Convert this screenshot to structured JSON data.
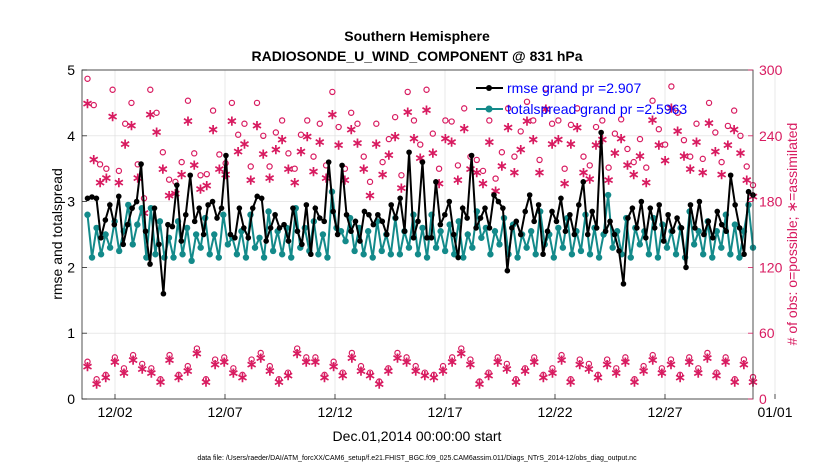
{
  "chart_data": {
    "type": "line",
    "title": "Southern Hemisphere",
    "subtitle": "RADIOSONDE_U_WIND_COMPONENT @ 831 hPa",
    "xlabel": "Dec.01,2014 00:00:00 start",
    "ylabel_left": "rmse and totalspread",
    "ylabel_right": "# of obs: o=possible; ∗=assimilated",
    "footer": "data file: /Users/raeder/DAI/ATM_forcXX/CAM6_setup/f.e21.FHIST_BGC.f09_025.CAM6assim.011/Diags_NTrS_2014-12/obs_diag_output.nc",
    "xlim": [
      0.5,
      31.0
    ],
    "ylim_left": [
      0,
      5
    ],
    "ylim_right": [
      0,
      300
    ],
    "x_ticks": [
      2,
      7,
      12,
      17,
      22,
      27,
      32
    ],
    "x_tick_labels": [
      "12/02",
      "12/07",
      "12/12",
      "12/17",
      "12/22",
      "12/27",
      "01/01"
    ],
    "y_left_ticks": [
      "0",
      "1",
      "2",
      "3",
      "4",
      "5"
    ],
    "y_right_ticks": [
      "0",
      "60",
      "120",
      "180",
      "240",
      "300"
    ],
    "colors": {
      "rmse": "#000000",
      "spread": "#138a8a",
      "obs": "#d81b60",
      "legend_text": "#0000ff",
      "right_axis": "#d81b60"
    },
    "legend": {
      "position": "top-right",
      "entries": [
        "rmse grand pr =2.907",
        "totalspread grand pr =2.5963"
      ]
    },
    "series": [
      {
        "name": "rmse",
        "values": [
          3.05,
          3.07,
          3.05,
          2.45,
          2.72,
          2.95,
          2.65,
          3.08,
          2.35,
          2.65,
          2.9,
          3.0,
          3.57,
          2.55,
          2.05,
          2.9,
          2.35,
          1.6,
          2.65,
          2.62,
          3.25,
          2.4,
          2.8,
          3.4,
          2.7,
          2.9,
          2.5,
          2.95,
          3.0,
          2.75,
          2.9,
          3.7,
          2.5,
          2.45,
          2.9,
          2.6,
          2.45,
          2.9,
          3.08,
          3.05,
          2.4,
          2.6,
          2.8,
          2.6,
          2.65,
          2.4,
          2.9,
          2.55,
          2.35,
          2.95,
          2.2,
          2.9,
          2.75,
          2.7,
          3.6,
          2.85,
          2.5,
          3.55,
          2.8,
          2.55,
          2.7,
          2.4,
          2.85,
          2.8,
          2.65,
          2.8,
          2.7,
          2.5,
          2.95,
          2.75,
          3.05,
          2.55,
          3.75,
          2.45,
          2.7,
          3.6,
          2.45,
          2.45,
          3.3,
          2.65,
          2.8,
          3.0,
          2.5,
          2.15,
          2.9,
          2.75,
          3.7,
          2.6,
          2.75,
          2.9,
          2.6,
          3.1,
          3.0,
          2.9,
          1.95,
          2.6,
          2.7,
          2.5,
          2.85,
          3.1,
          2.7,
          2.95,
          2.2,
          2.55,
          2.85,
          2.7,
          3.05,
          2.55,
          2.8,
          2.5,
          2.95,
          3.3,
          2.5,
          2.85,
          2.6,
          4.05,
          2.55,
          2.7,
          2.5,
          2.25,
          1.75,
          2.75,
          2.9,
          2.6,
          3.0,
          2.45,
          2.9,
          2.6,
          2.95,
          2.4,
          2.8,
          2.55,
          2.75,
          2.6,
          2.0,
          2.95,
          2.6,
          3.0,
          2.5,
          2.7,
          2.45,
          2.85,
          2.65,
          2.55,
          3.4,
          2.95,
          2.6,
          2.2,
          3.15,
          3.1
        ]
      },
      {
        "name": "totalspread",
        "values": [
          2.8,
          2.15,
          2.6,
          2.2,
          2.5,
          2.3,
          2.7,
          2.25,
          2.55,
          2.95,
          2.35,
          2.65,
          2.9,
          2.15,
          2.9,
          2.2,
          2.7,
          2.15,
          2.45,
          2.15,
          2.7,
          2.2,
          2.6,
          2.1,
          2.5,
          2.3,
          2.75,
          2.2,
          2.5,
          2.15,
          2.8,
          2.35,
          2.45,
          2.2,
          2.55,
          2.15,
          2.8,
          2.3,
          2.45,
          2.15,
          2.85,
          2.25,
          2.55,
          2.2,
          2.6,
          2.15,
          2.9,
          2.3,
          2.6,
          2.25,
          2.7,
          2.2,
          2.5,
          2.15,
          3.15,
          2.6,
          2.55,
          2.4,
          2.75,
          2.25,
          2.6,
          2.2,
          2.55,
          2.15,
          2.7,
          2.25,
          2.5,
          2.2,
          2.75,
          2.2,
          2.55,
          2.3,
          2.8,
          2.2,
          2.6,
          2.15,
          2.8,
          2.3,
          2.55,
          2.25,
          2.65,
          2.2,
          2.7,
          2.15,
          2.5,
          2.3,
          2.85,
          2.45,
          2.6,
          2.2,
          2.55,
          2.35,
          2.75,
          2.2,
          2.65,
          2.15,
          2.5,
          2.3,
          2.55,
          2.2,
          2.85,
          2.35,
          2.5,
          2.15,
          2.6,
          2.3,
          2.75,
          2.2,
          2.55,
          2.25,
          2.8,
          2.2,
          2.6,
          2.15,
          2.5,
          3.1,
          2.3,
          2.55,
          2.2,
          2.75,
          2.15,
          2.6,
          2.35,
          2.55,
          2.2,
          2.75,
          2.15,
          2.65,
          2.3,
          2.55,
          2.2,
          2.6,
          2.15,
          2.85,
          2.35,
          2.55,
          2.2,
          2.7,
          2.15,
          2.55,
          2.3,
          2.8,
          2.2,
          2.65,
          2.15,
          2.55,
          2.95,
          2.3
        ]
      },
      {
        "name": "obs_possible_high",
        "values": [
          292,
          268,
          214,
          210,
          282,
          208,
          251,
          270,
          214,
          183,
          282,
          261,
          225,
          200,
          198,
          216,
          272,
          224,
          204,
          205,
          263,
          223,
          215,
          270,
          241,
          251,
          212,
          270,
          240,
          212,
          243,
          254,
          224,
          210,
          241,
          254,
          221,
          251,
          213,
          280,
          248,
          210,
          261,
          251,
          221,
          198,
          251,
          216,
          237,
          257,
          204,
          280,
          254,
          232,
          282,
          242,
          210,
          254,
          253,
          213,
          265,
          221,
          218,
          208,
          254,
          201,
          225,
          265,
          221,
          244,
          271,
          254,
          218,
          283,
          251,
          254,
          210,
          250,
          265,
          221,
          213,
          248,
          254,
          211,
          242,
          255,
          228,
          216,
          237,
          211,
          272,
          246,
          232,
          285,
          261,
          236,
          221,
          251,
          219,
          270,
          243,
          216,
          249,
          263,
          240,
          212,
          195
        ]
      },
      {
        "name": "obs_assimilated_high",
        "values": [
          270,
          219,
          198,
          202,
          258,
          198,
          233,
          250,
          202,
          170,
          260,
          244,
          210,
          186,
          188,
          205,
          254,
          214,
          192,
          195,
          246,
          210,
          205,
          254,
          226,
          233,
          200,
          250,
          224,
          202,
          228,
          237,
          210,
          198,
          226,
          240,
          208,
          235,
          202,
          260,
          232,
          200,
          246,
          234,
          210,
          186,
          233,
          205,
          223,
          240,
          193,
          262,
          238,
          220,
          264,
          225,
          197,
          238,
          235,
          200,
          247,
          210,
          207,
          197,
          235,
          190,
          213,
          248,
          207,
          228,
          254,
          237,
          207,
          265,
          233,
          237,
          197,
          233,
          248,
          207,
          201,
          232,
          237,
          200,
          225,
          238,
          214,
          205,
          222,
          198,
          255,
          232,
          218,
          266,
          245,
          222,
          210,
          235,
          207,
          252,
          226,
          205,
          232,
          246,
          225,
          200,
          185
        ]
      },
      {
        "name": "obs_possible_low",
        "values": [
          34,
          18,
          22,
          38,
          28,
          40,
          32,
          28,
          18,
          40,
          22,
          30,
          46,
          18,
          36,
          38,
          28,
          22,
          36,
          42,
          30,
          18,
          24,
          46,
          38,
          38,
          22,
          34,
          24,
          42,
          30,
          24,
          16,
          28,
          42,
          38,
          30,
          24,
          22,
          30,
          38,
          46,
          36,
          16,
          24,
          38,
          32,
          18,
          28,
          38,
          22,
          28,
          40,
          18,
          36,
          32,
          22,
          36,
          28,
          38,
          18,
          30,
          40,
          28,
          36,
          22,
          38,
          28,
          42,
          24,
          38,
          18,
          36,
          20
        ]
      },
      {
        "name": "obs_assimilated_low",
        "values": [
          30,
          14,
          20,
          34,
          24,
          36,
          28,
          24,
          16,
          36,
          20,
          26,
          42,
          16,
          32,
          34,
          24,
          20,
          32,
          38,
          26,
          16,
          22,
          42,
          34,
          34,
          20,
          30,
          22,
          38,
          26,
          22,
          14,
          26,
          38,
          34,
          26,
          22,
          20,
          26,
          34,
          42,
          32,
          14,
          22,
          34,
          28,
          16,
          26,
          34,
          20,
          24,
          36,
          16,
          32,
          28,
          20,
          32,
          24,
          34,
          16,
          26,
          36,
          24,
          32,
          20,
          34,
          24,
          38,
          22,
          34,
          16,
          32,
          16
        ]
      }
    ]
  }
}
